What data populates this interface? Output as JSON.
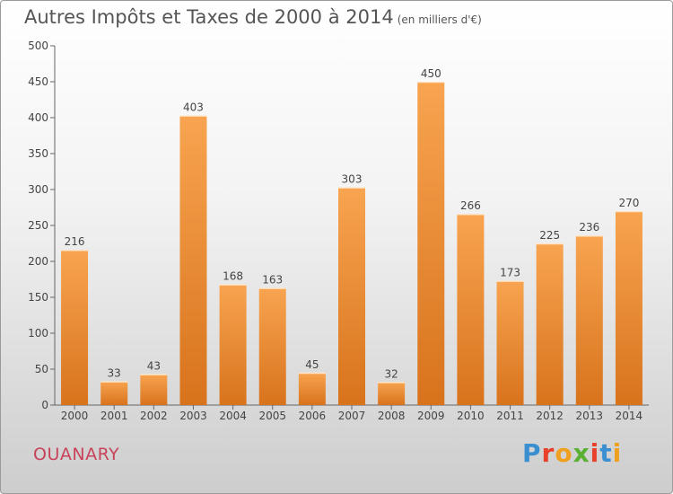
{
  "header": {
    "title": "Autres Impôts et Taxes de 2000 à 2014",
    "subtitle": "(en milliers d'€)"
  },
  "commune": "OUANARY",
  "logo": {
    "text": "Proxiti",
    "letters": [
      {
        "ch": "P",
        "color": "#3a8fd1"
      },
      {
        "ch": "r",
        "color": "#e8402a"
      },
      {
        "ch": "o",
        "color": "#f0a020"
      },
      {
        "ch": "x",
        "color": "#5ab032"
      },
      {
        "ch": "i",
        "color": "#e8402a"
      },
      {
        "ch": "t",
        "color": "#3a8fd1"
      },
      {
        "ch": "i",
        "color": "#f0a020"
      }
    ]
  },
  "colors": {
    "bar_light": "#f8a450",
    "bar_dark": "#d8731c",
    "axis": "#666666",
    "text": "#444444"
  },
  "chart_data": {
    "type": "bar",
    "title": "Autres Impôts et Taxes de 2000 à 2014",
    "subtitle": "(en milliers d'€)",
    "categories": [
      "2000",
      "2001",
      "2002",
      "2003",
      "2004",
      "2005",
      "2006",
      "2007",
      "2008",
      "2009",
      "2010",
      "2011",
      "2012",
      "2013",
      "2014"
    ],
    "values": [
      216,
      33,
      43,
      403,
      168,
      163,
      45,
      303,
      32,
      450,
      266,
      173,
      225,
      236,
      270
    ],
    "ylim": [
      0,
      500
    ],
    "yticks": [
      0,
      50,
      100,
      150,
      200,
      250,
      300,
      350,
      400,
      450,
      500
    ],
    "grid": false,
    "data_labels": true
  }
}
